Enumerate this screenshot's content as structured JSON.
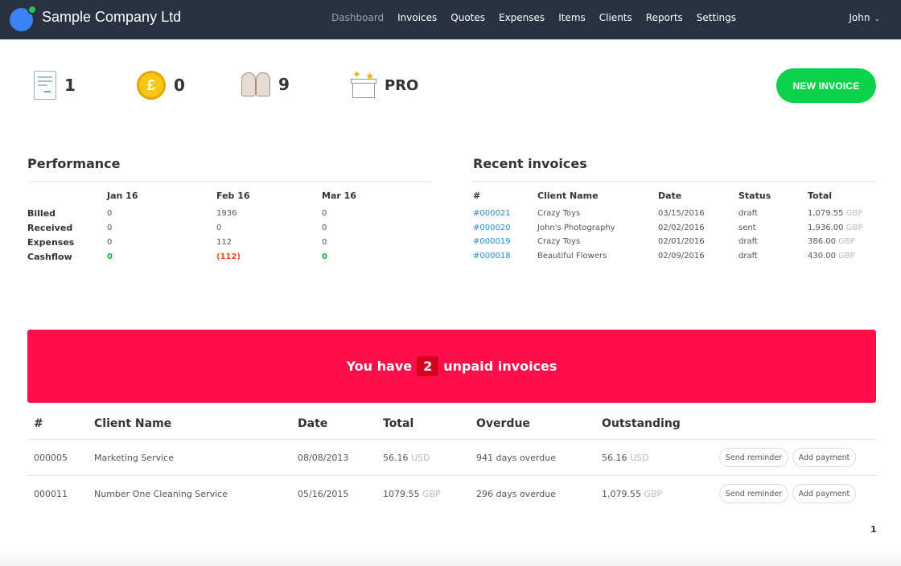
{
  "header": {
    "company": "Sample Company Ltd",
    "nav": [
      "Dashboard",
      "Invoices",
      "Quotes",
      "Expenses",
      "Items",
      "Clients",
      "Reports",
      "Settings"
    ],
    "user": "John"
  },
  "stats": {
    "invoices": "1",
    "money": "0",
    "clients": "9",
    "plan": "PRO",
    "new_invoice": "NEW INVOICE"
  },
  "performance": {
    "title": "Performance",
    "columns": [
      "Jan 16",
      "Feb 16",
      "Mar 16"
    ],
    "rows": [
      {
        "label": "Billed",
        "values": [
          "0",
          "1936",
          "0"
        ]
      },
      {
        "label": "Received",
        "values": [
          "0",
          "0",
          "0"
        ]
      },
      {
        "label": "Expenses",
        "values": [
          "0",
          "112",
          "0"
        ]
      },
      {
        "label": "Cashflow",
        "values": [
          "0",
          "(112)",
          "0"
        ]
      }
    ]
  },
  "recent": {
    "title": "Recent invoices",
    "columns": [
      "#",
      "Client Name",
      "Date",
      "Status",
      "Total"
    ],
    "rows": [
      {
        "id": "#000021",
        "client": "Crazy Toys",
        "date": "03/15/2016",
        "status": "draft",
        "total": "1,079.55",
        "cur": "GBP"
      },
      {
        "id": "#000020",
        "client": "John's Photography",
        "date": "02/02/2016",
        "status": "sent",
        "total": "1,936.00",
        "cur": "GBP"
      },
      {
        "id": "#000019",
        "client": "Crazy Toys",
        "date": "02/01/2016",
        "status": "draft",
        "total": "386.00",
        "cur": "GBP"
      },
      {
        "id": "#000018",
        "client": "Beautiful Flowers",
        "date": "02/09/2016",
        "status": "draft",
        "total": "430.00",
        "cur": "GBP"
      }
    ]
  },
  "banner": {
    "pre": "You have",
    "count": "2",
    "post": "unpaid invoices"
  },
  "unpaid": {
    "columns": [
      "#",
      "Client Name",
      "Date",
      "Total",
      "Overdue",
      "Outstanding"
    ],
    "rows": [
      {
        "id": "000005",
        "client": "Marketing Service",
        "date": "08/08/2013",
        "total": "56.16",
        "total_cur": "USD",
        "overdue": "941 days overdue",
        "outstanding": "56.16",
        "out_cur": "USD"
      },
      {
        "id": "000011",
        "client": "Number One Cleaning Service",
        "date": "05/16/2015",
        "total": "1079.55",
        "total_cur": "GBP",
        "overdue": "296 days overdue",
        "outstanding": "1,079.55",
        "out_cur": "GBP"
      }
    ],
    "send_reminder": "Send reminder",
    "add_payment": "Add payment"
  },
  "pager": {
    "page": "1"
  },
  "colors": {
    "topbar": "#283241",
    "accent_green": "#0ad24a",
    "banner_red": "#ff0e4a",
    "link": "#2a8bd5"
  }
}
